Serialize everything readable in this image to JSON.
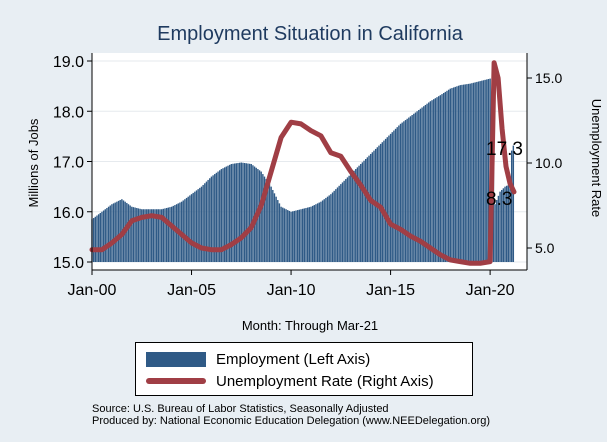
{
  "chart_data": {
    "type": "bar+line",
    "title": "Employment Situation in California",
    "xlabel": "Month: Through Mar-21",
    "ylabel_left": "Millions of Jobs",
    "ylabel_right": "Unemployment Rate",
    "x_ticks": [
      "Jan-00",
      "Jan-05",
      "Jan-10",
      "Jan-15",
      "Jan-20"
    ],
    "y_left_ticks": [
      "15.0",
      "16.0",
      "17.0",
      "18.0",
      "19.0"
    ],
    "y_right_ticks": [
      "5.0",
      "10.0",
      "15.0"
    ],
    "ylim_left": [
      15.0,
      19.0
    ],
    "ylim_right": [
      3.8,
      16.0
    ],
    "xlim": [
      2000.0,
      2021.25
    ],
    "colors": {
      "bars": "#2f5a86",
      "line": "#a03e45",
      "plot_bg": "#ffffff",
      "frame_bg": "#e8eef3",
      "title": "#1e3a5f"
    },
    "grid": true,
    "legend": "bottom",
    "series": [
      {
        "name": "Employment (Left Axis)",
        "kind": "bar",
        "axis": "left",
        "points": [
          [
            2000.0,
            15.85
          ],
          [
            2000.5,
            16.0
          ],
          [
            2001.0,
            16.15
          ],
          [
            2001.5,
            16.25
          ],
          [
            2002.0,
            16.1
          ],
          [
            2002.5,
            16.05
          ],
          [
            2003.0,
            16.05
          ],
          [
            2003.5,
            16.05
          ],
          [
            2004.0,
            16.1
          ],
          [
            2004.5,
            16.2
          ],
          [
            2005.0,
            16.35
          ],
          [
            2005.5,
            16.5
          ],
          [
            2006.0,
            16.7
          ],
          [
            2006.5,
            16.85
          ],
          [
            2007.0,
            16.95
          ],
          [
            2007.5,
            16.98
          ],
          [
            2008.0,
            16.95
          ],
          [
            2008.5,
            16.8
          ],
          [
            2009.0,
            16.5
          ],
          [
            2009.5,
            16.1
          ],
          [
            2010.0,
            16.0
          ],
          [
            2010.5,
            16.05
          ],
          [
            2011.0,
            16.1
          ],
          [
            2011.5,
            16.2
          ],
          [
            2012.0,
            16.35
          ],
          [
            2012.5,
            16.55
          ],
          [
            2013.0,
            16.75
          ],
          [
            2013.5,
            16.95
          ],
          [
            2014.0,
            17.15
          ],
          [
            2014.5,
            17.35
          ],
          [
            2015.0,
            17.55
          ],
          [
            2015.5,
            17.75
          ],
          [
            2016.0,
            17.9
          ],
          [
            2016.5,
            18.05
          ],
          [
            2017.0,
            18.2
          ],
          [
            2017.5,
            18.32
          ],
          [
            2018.0,
            18.45
          ],
          [
            2018.5,
            18.52
          ],
          [
            2019.0,
            18.55
          ],
          [
            2019.5,
            18.6
          ],
          [
            2020.0,
            18.65
          ],
          [
            2020.25,
            16.15
          ],
          [
            2020.5,
            16.4
          ],
          [
            2020.75,
            16.5
          ],
          [
            2021.0,
            16.55
          ],
          [
            2021.1,
            17.35
          ],
          [
            2021.2,
            17.3
          ]
        ],
        "end_label": "17.3"
      },
      {
        "name": "Unemployment Rate (Right Axis)",
        "kind": "line",
        "axis": "right",
        "points": [
          [
            2000.0,
            4.9
          ],
          [
            2000.5,
            4.9
          ],
          [
            2001.0,
            5.3
          ],
          [
            2001.5,
            5.8
          ],
          [
            2002.0,
            6.6
          ],
          [
            2002.5,
            6.8
          ],
          [
            2003.0,
            6.9
          ],
          [
            2003.5,
            6.8
          ],
          [
            2004.0,
            6.3
          ],
          [
            2004.5,
            5.8
          ],
          [
            2005.0,
            5.3
          ],
          [
            2005.5,
            5.0
          ],
          [
            2006.0,
            4.9
          ],
          [
            2006.5,
            4.9
          ],
          [
            2007.0,
            5.2
          ],
          [
            2007.5,
            5.6
          ],
          [
            2008.0,
            6.2
          ],
          [
            2008.5,
            7.5
          ],
          [
            2009.0,
            9.5
          ],
          [
            2009.5,
            11.5
          ],
          [
            2010.0,
            12.4
          ],
          [
            2010.5,
            12.3
          ],
          [
            2011.0,
            11.9
          ],
          [
            2011.5,
            11.6
          ],
          [
            2012.0,
            10.6
          ],
          [
            2012.5,
            10.4
          ],
          [
            2013.0,
            9.5
          ],
          [
            2013.5,
            8.7
          ],
          [
            2014.0,
            7.8
          ],
          [
            2014.5,
            7.4
          ],
          [
            2015.0,
            6.4
          ],
          [
            2015.5,
            6.1
          ],
          [
            2016.0,
            5.7
          ],
          [
            2016.5,
            5.4
          ],
          [
            2017.0,
            5.0
          ],
          [
            2017.5,
            4.6
          ],
          [
            2018.0,
            4.3
          ],
          [
            2018.5,
            4.2
          ],
          [
            2019.0,
            4.1
          ],
          [
            2019.5,
            4.1
          ],
          [
            2020.0,
            4.2
          ],
          [
            2020.2,
            15.9
          ],
          [
            2020.4,
            15.0
          ],
          [
            2020.6,
            12.0
          ],
          [
            2020.8,
            9.8
          ],
          [
            2021.0,
            8.8
          ],
          [
            2021.2,
            8.3
          ]
        ],
        "end_label": "8.3"
      }
    ]
  },
  "source": {
    "line1": "Source: U.S. Bureau of Labor Statistics, Seasonally Adjusted",
    "line2": "Produced by: National Economic Education Delegation (www.NEEDelegation.org)"
  }
}
